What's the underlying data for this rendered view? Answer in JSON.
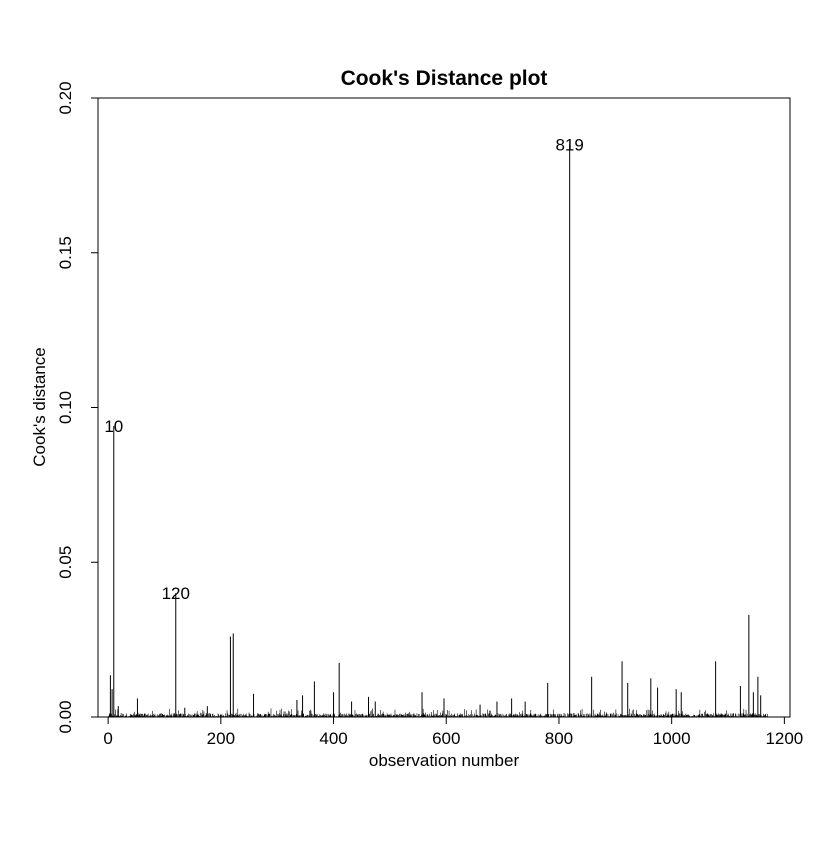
{
  "chart_data": {
    "type": "bar",
    "title": "Cook's Distance plot",
    "xlabel": "observation number",
    "ylabel": "Cook's distance",
    "xlim": [
      -18,
      1210
    ],
    "ylim": [
      0,
      0.2
    ],
    "x_ticks": [
      0,
      200,
      400,
      600,
      800,
      1000,
      1200
    ],
    "x_tick_labels": [
      "0",
      "200",
      "400",
      "600",
      "800",
      "1000",
      "1200"
    ],
    "y_ticks": [
      0,
      0.05,
      0.1,
      0.15,
      0.2
    ],
    "y_tick_labels": [
      "0.00",
      "0.05",
      "0.10",
      "0.15",
      "0.20"
    ],
    "grid": false,
    "n_observations": 1170,
    "notable_points": [
      {
        "x": 4,
        "y": 0.0135
      },
      {
        "x": 7,
        "y": 0.009
      },
      {
        "x": 10,
        "y": 0.094
      },
      {
        "x": 18,
        "y": 0.0035
      },
      {
        "x": 52,
        "y": 0.006
      },
      {
        "x": 120,
        "y": 0.04
      },
      {
        "x": 136,
        "y": 0.003
      },
      {
        "x": 176,
        "y": 0.0035
      },
      {
        "x": 217,
        "y": 0.026
      },
      {
        "x": 222,
        "y": 0.027
      },
      {
        "x": 258,
        "y": 0.0075
      },
      {
        "x": 335,
        "y": 0.0055
      },
      {
        "x": 345,
        "y": 0.007
      },
      {
        "x": 366,
        "y": 0.0115
      },
      {
        "x": 400,
        "y": 0.008
      },
      {
        "x": 410,
        "y": 0.0175
      },
      {
        "x": 432,
        "y": 0.005
      },
      {
        "x": 462,
        "y": 0.0065
      },
      {
        "x": 474,
        "y": 0.005
      },
      {
        "x": 557,
        "y": 0.008
      },
      {
        "x": 596,
        "y": 0.006
      },
      {
        "x": 660,
        "y": 0.004
      },
      {
        "x": 690,
        "y": 0.005
      },
      {
        "x": 716,
        "y": 0.006
      },
      {
        "x": 740,
        "y": 0.005
      },
      {
        "x": 780,
        "y": 0.011
      },
      {
        "x": 819,
        "y": 0.185
      },
      {
        "x": 858,
        "y": 0.013
      },
      {
        "x": 912,
        "y": 0.018
      },
      {
        "x": 922,
        "y": 0.011
      },
      {
        "x": 963,
        "y": 0.0125
      },
      {
        "x": 975,
        "y": 0.0095
      },
      {
        "x": 1008,
        "y": 0.009
      },
      {
        "x": 1017,
        "y": 0.008
      },
      {
        "x": 1078,
        "y": 0.018
      },
      {
        "x": 1122,
        "y": 0.01
      },
      {
        "x": 1137,
        "y": 0.033
      },
      {
        "x": 1145,
        "y": 0.008
      },
      {
        "x": 1153,
        "y": 0.013
      },
      {
        "x": 1158,
        "y": 0.007
      }
    ],
    "labeled_points": [
      {
        "label": "10",
        "x": 10,
        "y": 0.094
      },
      {
        "label": "120",
        "x": 120,
        "y": 0.04
      },
      {
        "label": "819",
        "x": 819,
        "y": 0.185
      }
    ]
  }
}
